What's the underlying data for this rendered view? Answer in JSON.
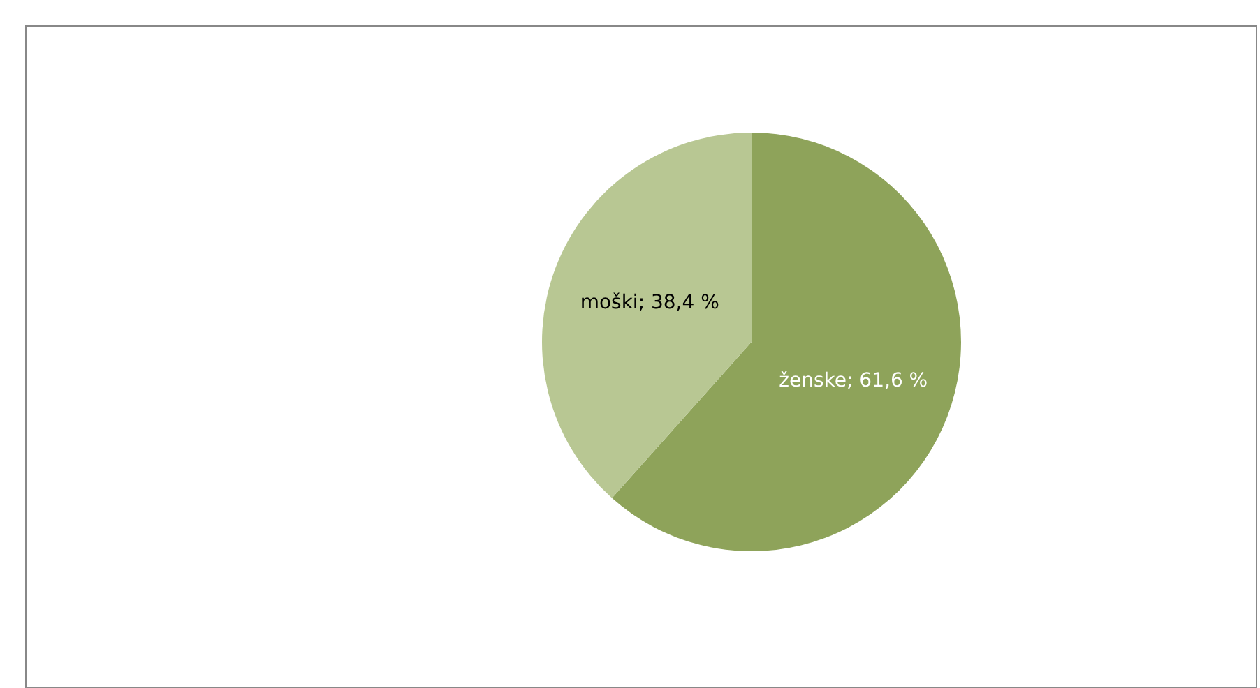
{
  "chart_data": {
    "type": "pie",
    "categories": [
      "ženske",
      "moški"
    ],
    "values": [
      61.6,
      38.4
    ],
    "colors": [
      "#8ea35a",
      "#b8c793"
    ],
    "value_labels": [
      "61,6 %",
      "38,4 %"
    ]
  }
}
